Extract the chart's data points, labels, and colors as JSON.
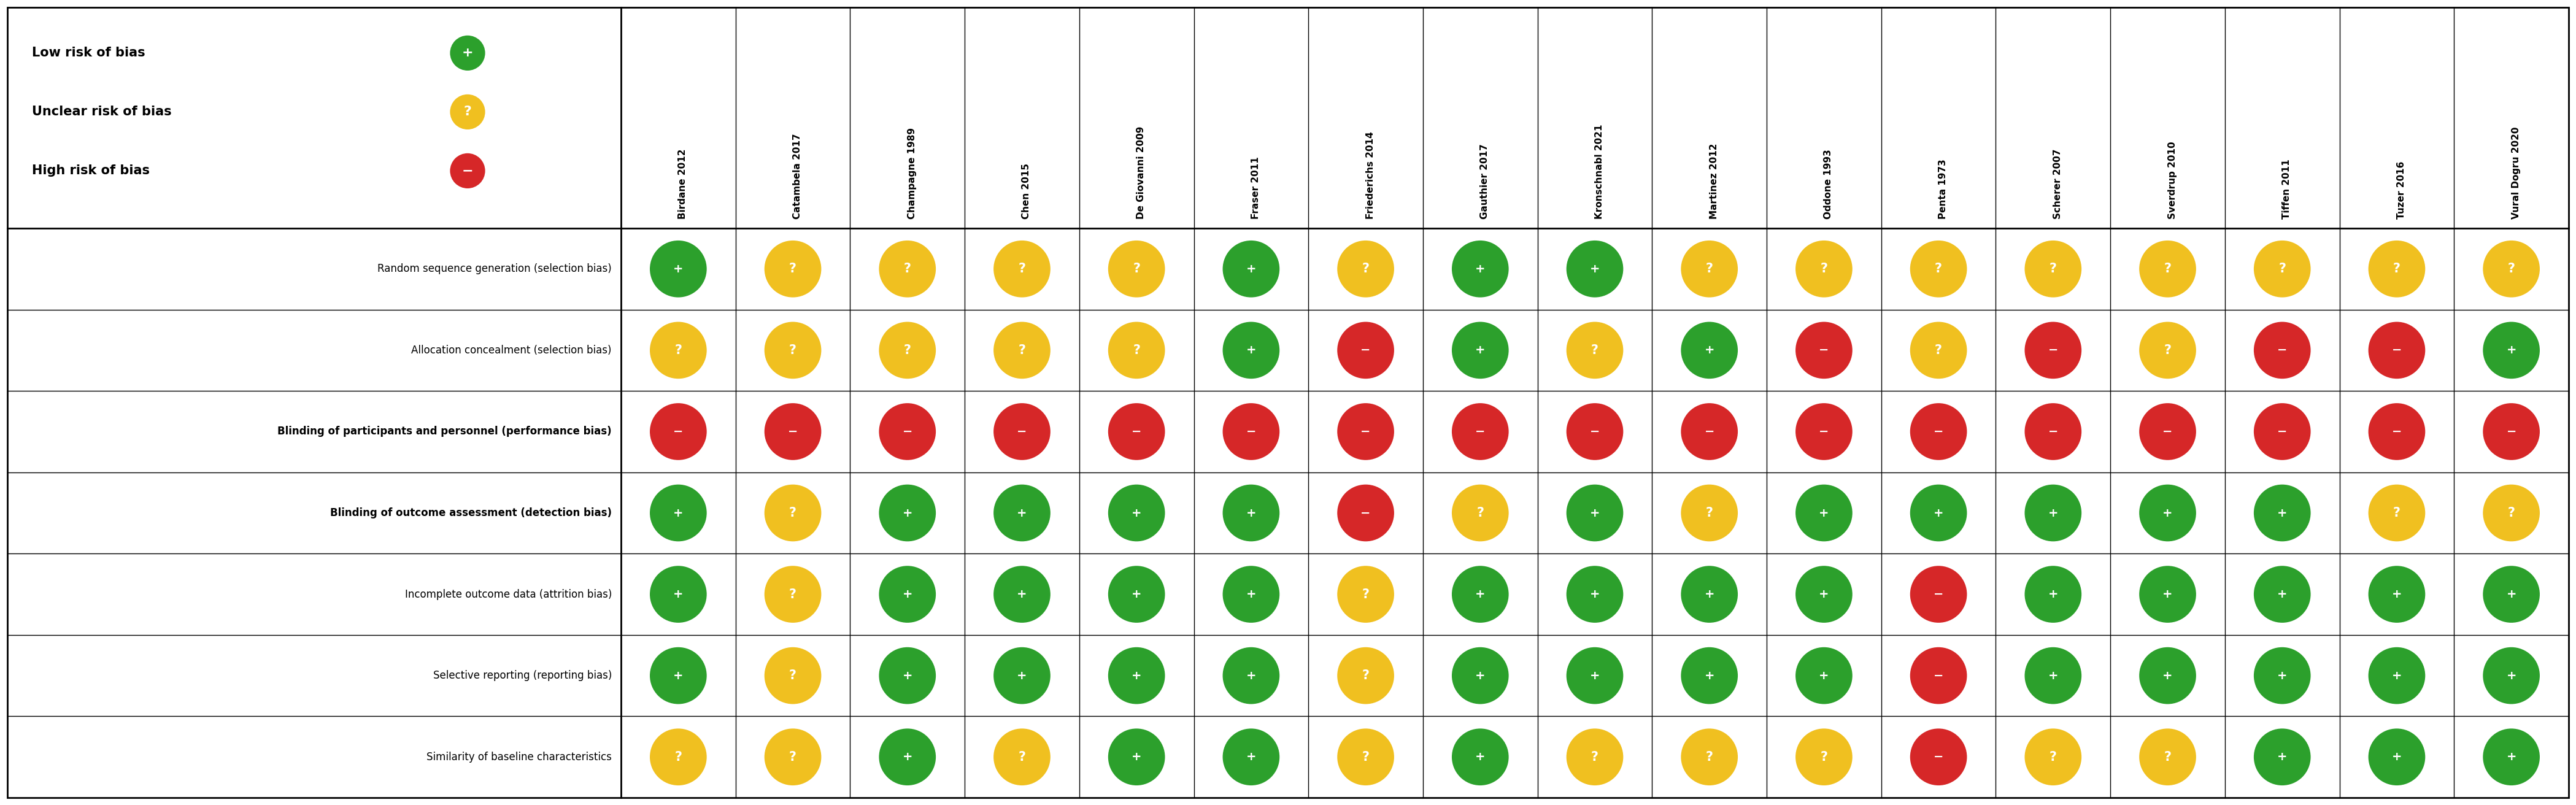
{
  "studies": [
    "Birdane 2012",
    "Catambela 2017",
    "Champagne 1989",
    "Chen 2015",
    "De Giovanni 2009",
    "Fraser 2011",
    "Friederichs 2014",
    "Gauthier 2017",
    "Kronschnabl 2021",
    "Martinez 2012",
    "Oddone 1993",
    "Penta 1973",
    "Scherer 2007",
    "Sverdrup 2010",
    "Tiffen 2011",
    "Tuzer 2016",
    "Vural Dogru 2020"
  ],
  "criteria": [
    "Random sequence generation (selection bias)",
    "Allocation concealment (selection bias)",
    "Blinding of participants and personnel (performance bias)",
    "Blinding of outcome assessment (detection bias)",
    "Incomplete outcome data (attrition bias)",
    "Selective reporting (reporting bias)",
    "Similarity of baseline characteristics"
  ],
  "ratings": [
    [
      "G",
      "Y",
      "Y",
      "Y",
      "Y",
      "G",
      "Y",
      "G",
      "G",
      "Y",
      "Y",
      "Y",
      "Y",
      "Y",
      "Y",
      "Y",
      "Y"
    ],
    [
      "Y",
      "Y",
      "Y",
      "Y",
      "Y",
      "G",
      "R",
      "G",
      "Y",
      "G",
      "R",
      "Y",
      "R",
      "Y",
      "R",
      "R",
      "G"
    ],
    [
      "R",
      "R",
      "R",
      "R",
      "R",
      "R",
      "R",
      "R",
      "R",
      "R",
      "R",
      "R",
      "R",
      "R",
      "R",
      "R",
      "R"
    ],
    [
      "G",
      "Y",
      "G",
      "G",
      "G",
      "G",
      "R",
      "Y",
      "G",
      "Y",
      "G",
      "G",
      "G",
      "G",
      "G",
      "Y",
      "Y"
    ],
    [
      "G",
      "Y",
      "G",
      "G",
      "G",
      "G",
      "Y",
      "G",
      "G",
      "G",
      "G",
      "R",
      "G",
      "G",
      "G",
      "G",
      "G"
    ],
    [
      "G",
      "Y",
      "G",
      "G",
      "G",
      "G",
      "Y",
      "G",
      "G",
      "G",
      "G",
      "R",
      "G",
      "G",
      "G",
      "G",
      "G"
    ],
    [
      "Y",
      "Y",
      "G",
      "Y",
      "G",
      "G",
      "Y",
      "G",
      "Y",
      "Y",
      "Y",
      "R",
      "Y",
      "Y",
      "G",
      "G",
      "G"
    ]
  ],
  "color_map": {
    "G": "#2ca02c",
    "Y": "#f0c020",
    "R": "#d62728"
  },
  "symbol_map": {
    "G": "+",
    "Y": "?",
    "R": "−"
  },
  "legend_items": [
    {
      "label": "Low risk of bias",
      "color": "#2ca02c",
      "symbol": "+"
    },
    {
      "label": "Unclear risk of bias",
      "color": "#f0c020",
      "symbol": "?"
    },
    {
      "label": "High risk of bias",
      "color": "#d62728",
      "symbol": "−"
    }
  ],
  "criteria_bold": [
    false,
    false,
    true,
    true,
    false,
    false,
    false
  ],
  "fig_w": 41.98,
  "fig_h": 13.12
}
